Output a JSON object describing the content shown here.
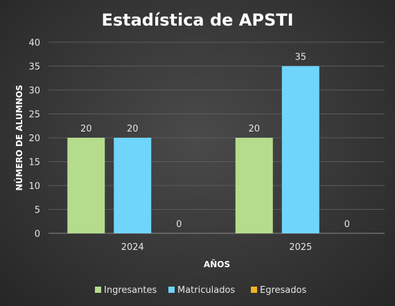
{
  "chart_data": {
    "type": "bar",
    "title": "Estadística de APSTI",
    "xlabel": "AÑOS",
    "ylabel": "NÚMERO DE ALUMNOS",
    "categories": [
      "2024",
      "2025"
    ],
    "series": [
      {
        "name": "Ingresantes",
        "color": "#b5dc8d",
        "values": [
          20,
          20
        ]
      },
      {
        "name": "Matriculados",
        "color": "#6fd5fb",
        "values": [
          20,
          35
        ]
      },
      {
        "name": "Egresados",
        "color": "#f0b323",
        "values": [
          0,
          0
        ]
      }
    ],
    "ylim": [
      0,
      40
    ],
    "yticks": [
      0,
      5,
      10,
      15,
      20,
      25,
      30,
      35,
      40
    ],
    "grid": true,
    "legend": "bottom"
  }
}
